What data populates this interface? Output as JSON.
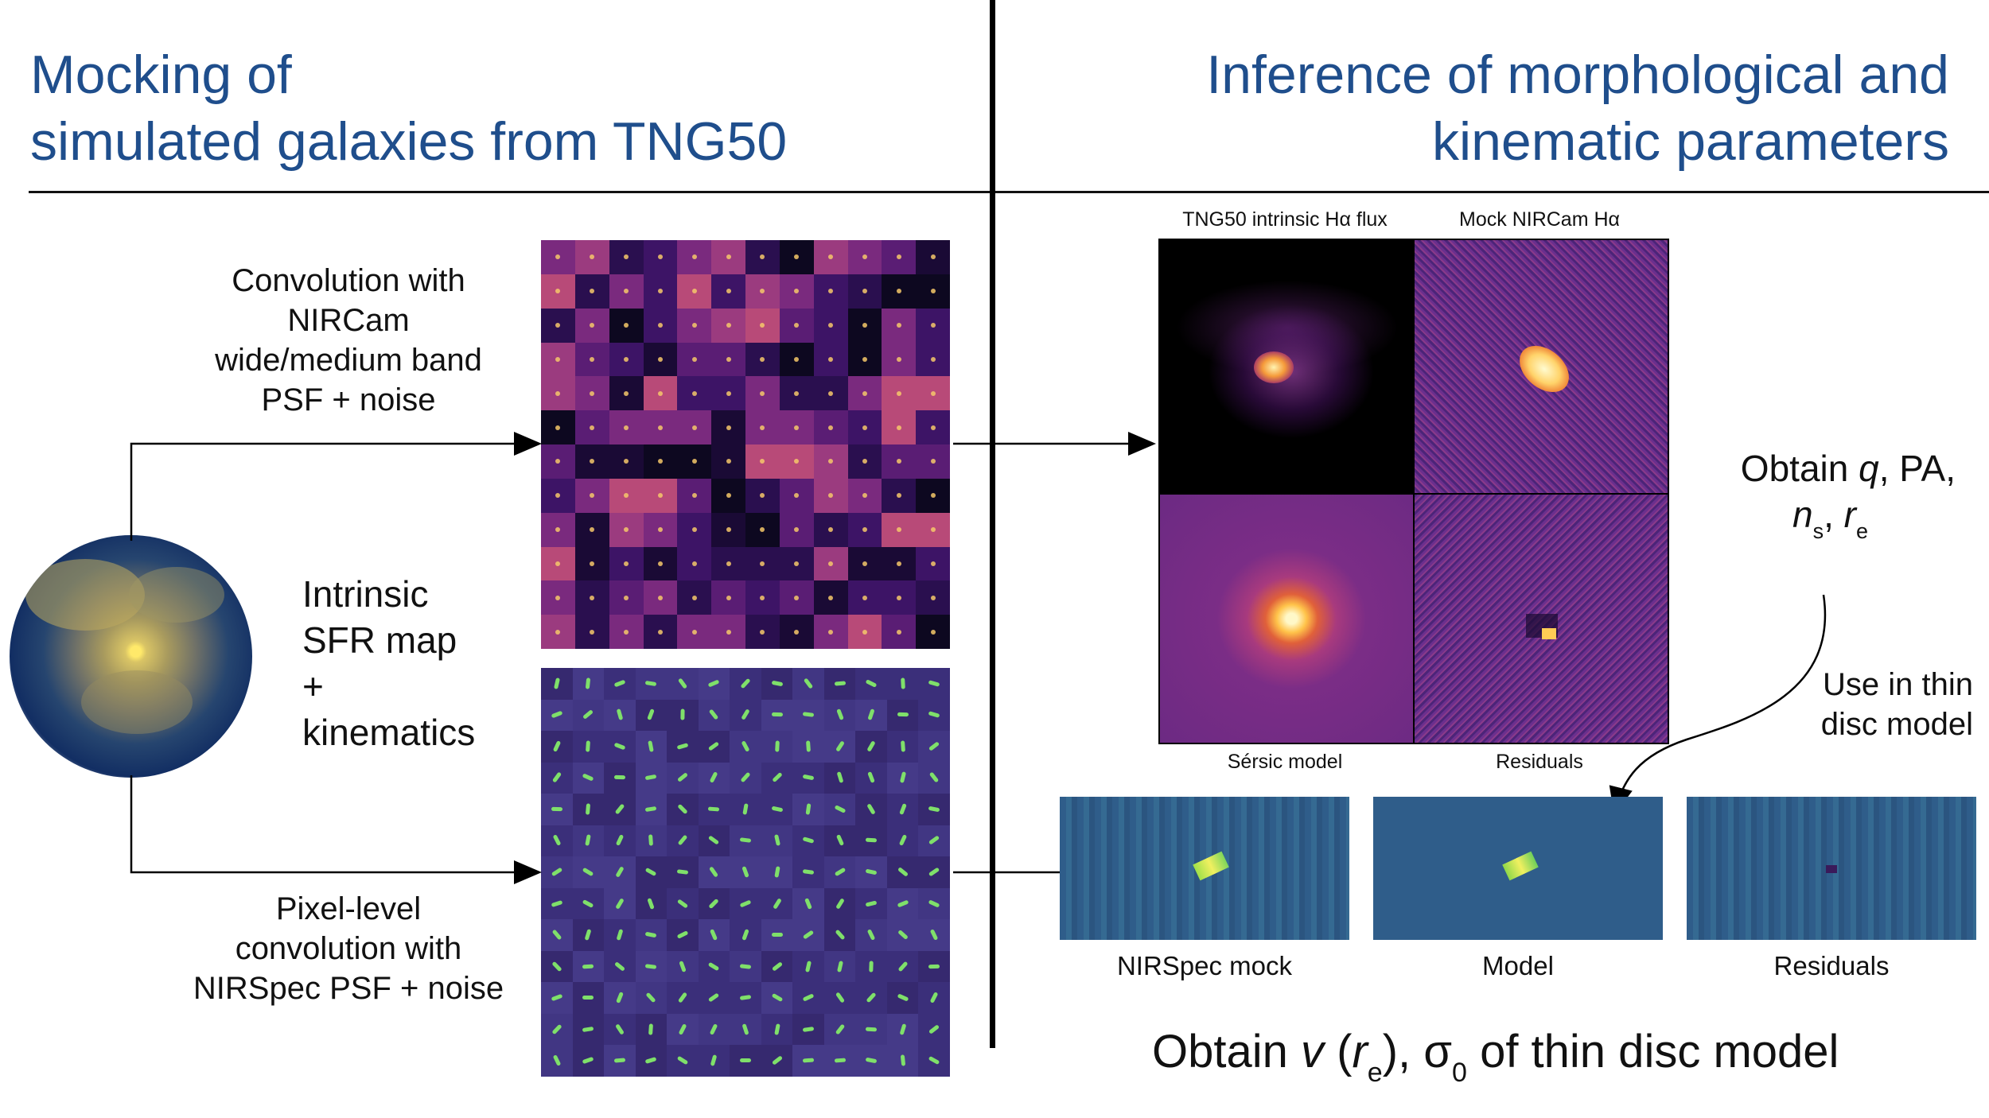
{
  "left_title": [
    "Mocking of",
    "simulated galaxies from TNG50"
  ],
  "right_title": [
    "Inference of morphological and",
    "kinematic parameters"
  ],
  "top_caption": [
    "Convolution with",
    "NIRCam",
    "wide/medium band",
    "PSF + noise"
  ],
  "center_caption": [
    "Intrinsic",
    "SFR map",
    "+",
    "kinematics"
  ],
  "bottom_caption": [
    "Pixel-level",
    "convolution with",
    "NIRSpec PSF + noise"
  ],
  "panels": {
    "tng50": "TNG50 intrinsic Hα flux",
    "nircam": "Mock NIRCam Hα",
    "sersic": "Sérsic model",
    "residuals": "Residuals"
  },
  "obtain_morph": {
    "prefix": "Obtain ",
    "q": "q",
    "pa": ", PA,",
    "n": "n",
    "n_sub": "s",
    "comma": ", ",
    "r": "r",
    "r_sub": "e"
  },
  "use_in": [
    "Use in thin",
    "disc model"
  ],
  "spec_labels": [
    "NIRSpec mock",
    "Model",
    "Residuals"
  ],
  "obtain_kin": {
    "prefix": "Obtain ",
    "v": "v",
    "open": " (",
    "r": "r",
    "r_sub": "e",
    "close": "), ",
    "sigma": "σ",
    "sigma_sub": "0",
    "suffix": " of thin disc model"
  },
  "colors": {
    "title_blue": "#1f4e8c",
    "magma_dark": "#100a2a",
    "viridis_bg": "#2f5d8a"
  }
}
